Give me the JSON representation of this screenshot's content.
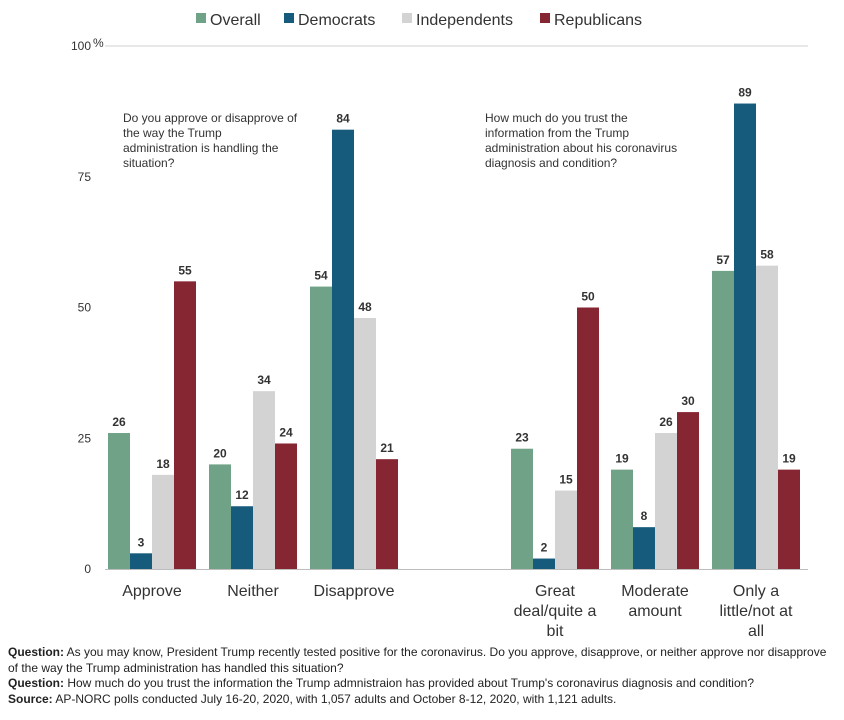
{
  "chart_data": {
    "type": "bar",
    "series": [
      {
        "name": "Overall",
        "color": "#6fa287",
        "values": [
          26,
          20,
          54,
          23,
          19,
          57
        ]
      },
      {
        "name": "Democrats",
        "color": "#175b7c",
        "values": [
          3,
          12,
          84,
          2,
          8,
          89
        ]
      },
      {
        "name": "Independents",
        "color": "#d3d3d3",
        "values": [
          18,
          34,
          48,
          15,
          26,
          58
        ]
      },
      {
        "name": "Republicans",
        "color": "#862633",
        "values": [
          55,
          24,
          21,
          50,
          30,
          19
        ]
      }
    ],
    "categories": [
      [
        "Approve"
      ],
      [
        "Neither"
      ],
      [
        "Disapprove"
      ],
      [
        "Great",
        "deal/quite a",
        "bit"
      ],
      [
        "Moderate",
        "amount"
      ],
      [
        "Only a",
        "little/not at",
        "all"
      ]
    ],
    "ylim": [
      0,
      100
    ],
    "yticks": [
      "0",
      "25",
      "50",
      "75",
      "100"
    ],
    "ytick_top_suffix": "%",
    "legend_position": "top-center",
    "grid": false,
    "annotations": [
      [
        "Do you approve or disapprove of",
        "the way the Trump",
        "administration is handling the",
        "situation?"
      ],
      [
        "How much do you trust the",
        "information from the Trump",
        "administration about his coronavirus",
        "diagnosis and condition?"
      ]
    ]
  },
  "footer": {
    "q1_label": "Question:",
    "q1_text": " As you may know, President Trump recently tested positive for the coronavirus. Do you approve, disapprove, or neither approve nor disapprove of the way the Trump administration has handled this situation?",
    "q2_label": "Question:",
    "q2_text": " How much do you trust the information the Trump admnistraion has provided about Trump's coronavirus diagnosis and condition?",
    "source_label": "Source:",
    "source_text": " AP-NORC polls conducted July 16-20, 2020, with 1,057 adults and October 8-12, 2020, with 1,121 adults."
  }
}
